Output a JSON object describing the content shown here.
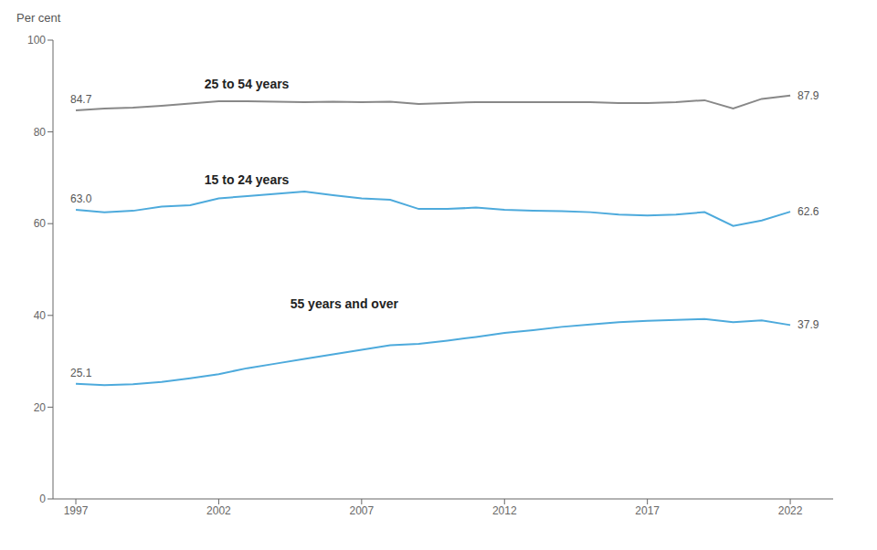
{
  "chart_data": {
    "type": "line",
    "y_label": "Per cent",
    "x": [
      1997,
      1998,
      1999,
      2000,
      2001,
      2002,
      2003,
      2004,
      2005,
      2006,
      2007,
      2008,
      2009,
      2010,
      2011,
      2012,
      2013,
      2014,
      2015,
      2016,
      2017,
      2018,
      2019,
      2020,
      2021,
      2022
    ],
    "series": [
      {
        "name": "25 to 54 years",
        "color": "#888888",
        "values": [
          84.7,
          85.1,
          85.3,
          85.7,
          86.2,
          86.7,
          86.7,
          86.6,
          86.5,
          86.6,
          86.5,
          86.6,
          86.1,
          86.3,
          86.5,
          86.5,
          86.5,
          86.5,
          86.5,
          86.3,
          86.3,
          86.5,
          86.9,
          85.1,
          87.2,
          87.9
        ],
        "value_labels": [
          "84.7",
          null,
          null,
          null,
          null,
          null,
          null,
          null,
          null,
          null,
          null,
          null,
          null,
          null,
          null,
          null,
          null,
          null,
          null,
          null,
          null,
          null,
          null,
          null,
          null,
          "87.9"
        ]
      },
      {
        "name": "15 to 24 years",
        "color": "#4daadc",
        "values": [
          63.0,
          62.5,
          62.8,
          63.7,
          64.0,
          65.5,
          66.0,
          66.5,
          67.0,
          66.2,
          65.5,
          65.2,
          63.2,
          63.2,
          63.5,
          63.0,
          62.8,
          62.7,
          62.5,
          62.0,
          61.8,
          62.0,
          62.5,
          59.5,
          60.7,
          62.6
        ],
        "value_labels": [
          "63.0",
          null,
          null,
          null,
          null,
          null,
          null,
          null,
          null,
          null,
          null,
          null,
          null,
          null,
          null,
          null,
          null,
          null,
          null,
          null,
          null,
          null,
          null,
          null,
          null,
          "62.6"
        ]
      },
      {
        "name": "55 years and over",
        "color": "#4daadc",
        "values": [
          25.1,
          24.8,
          25.0,
          25.5,
          26.3,
          27.2,
          28.5,
          29.5,
          30.5,
          31.5,
          32.5,
          33.5,
          33.8,
          34.5,
          35.3,
          36.2,
          36.8,
          37.5,
          38.0,
          38.5,
          38.8,
          39.0,
          39.2,
          38.5,
          38.9,
          37.9
        ],
        "value_labels": [
          "25.1",
          null,
          null,
          null,
          null,
          null,
          null,
          null,
          null,
          null,
          null,
          null,
          null,
          null,
          null,
          null,
          null,
          null,
          null,
          null,
          null,
          null,
          null,
          null,
          null,
          "37.9"
        ]
      }
    ],
    "annotations": [
      {
        "text": "25 to 54 years",
        "x": 2001.5,
        "y": 90.5
      },
      {
        "text": "15 to 24 years",
        "x": 2001.5,
        "y": 69.5
      },
      {
        "text": "55 years and over",
        "x": 2004.5,
        "y": 42.5
      }
    ],
    "xlim": [
      1996.2,
      2023.5
    ],
    "xticks": [
      1997,
      2002,
      2007,
      2012,
      2017,
      2022
    ],
    "ylim": [
      0,
      100
    ],
    "yticks": [
      0,
      20,
      40,
      60,
      80,
      100
    ],
    "grid": false,
    "legend": false
  }
}
